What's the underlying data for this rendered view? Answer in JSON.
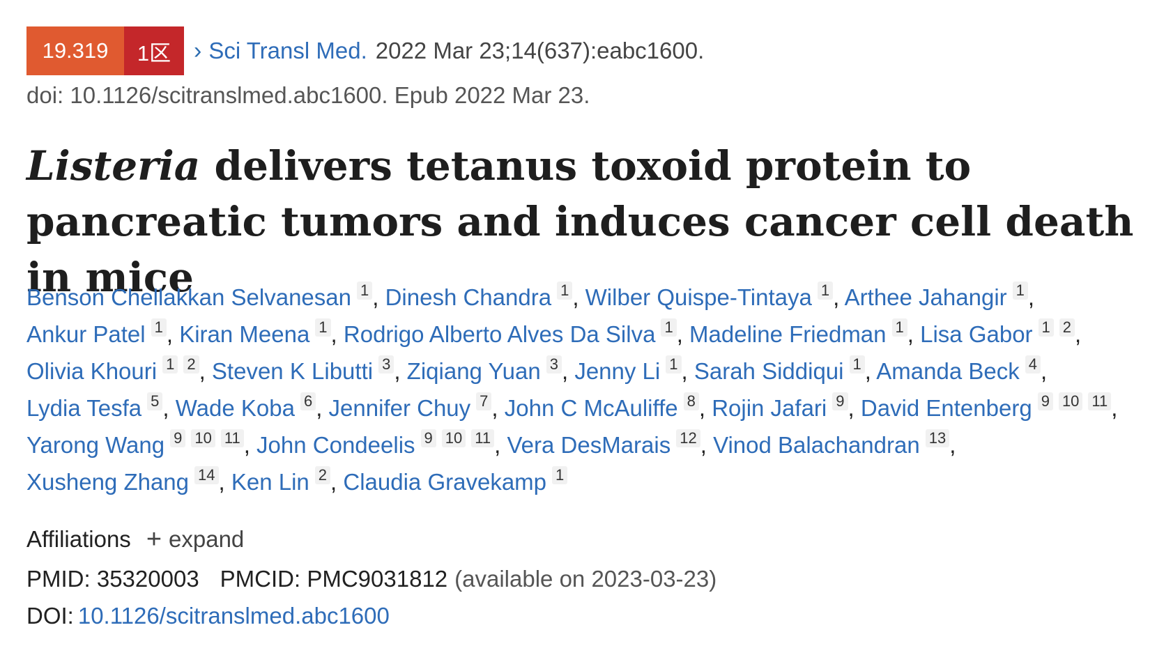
{
  "header": {
    "impact_factor": "19.319",
    "zone": "1区",
    "journal": "Sci Transl Med.",
    "citation": "2022 Mar 23;14(637):eabc1600.",
    "doi_epub": "doi: 10.1126/scitranslmed.abc1600. Epub 2022 Mar 23.",
    "colors": {
      "if_badge": "#e05a30",
      "zone_badge": "#c4272a",
      "link": "#2e6cb8"
    }
  },
  "title": {
    "italic": "Listeria",
    "rest": " delivers tetanus toxoid protein to pancreatic tumors and induces cancer cell death in mice"
  },
  "authors": [
    {
      "name": "Benson Chellakkan Selvanesan",
      "affs": [
        "1"
      ]
    },
    {
      "name": "Dinesh Chandra",
      "affs": [
        "1"
      ]
    },
    {
      "name": "Wilber Quispe-Tintaya",
      "affs": [
        "1"
      ]
    },
    {
      "name": "Arthee Jahangir",
      "affs": [
        "1"
      ]
    },
    {
      "name": "Ankur Patel",
      "affs": [
        "1"
      ]
    },
    {
      "name": "Kiran Meena",
      "affs": [
        "1"
      ]
    },
    {
      "name": "Rodrigo Alberto Alves Da Silva",
      "affs": [
        "1"
      ]
    },
    {
      "name": "Madeline Friedman",
      "affs": [
        "1"
      ]
    },
    {
      "name": "Lisa Gabor",
      "affs": [
        "1",
        "2"
      ]
    },
    {
      "name": "Olivia Khouri",
      "affs": [
        "1",
        "2"
      ]
    },
    {
      "name": "Steven K Libutti",
      "affs": [
        "3"
      ]
    },
    {
      "name": "Ziqiang Yuan",
      "affs": [
        "3"
      ]
    },
    {
      "name": "Jenny Li",
      "affs": [
        "1"
      ]
    },
    {
      "name": "Sarah Siddiqui",
      "affs": [
        "1"
      ]
    },
    {
      "name": "Amanda Beck",
      "affs": [
        "4"
      ]
    },
    {
      "name": "Lydia Tesfa",
      "affs": [
        "5"
      ]
    },
    {
      "name": "Wade Koba",
      "affs": [
        "6"
      ]
    },
    {
      "name": "Jennifer Chuy",
      "affs": [
        "7"
      ]
    },
    {
      "name": "John C McAuliffe",
      "affs": [
        "8"
      ]
    },
    {
      "name": "Rojin Jafari",
      "affs": [
        "9"
      ]
    },
    {
      "name": "David Entenberg",
      "affs": [
        "9",
        "10",
        "11"
      ]
    },
    {
      "name": "Yarong Wang",
      "affs": [
        "9",
        "10",
        "11"
      ]
    },
    {
      "name": "John Condeelis",
      "affs": [
        "9",
        "10",
        "11"
      ]
    },
    {
      "name": "Vera DesMarais",
      "affs": [
        "12"
      ]
    },
    {
      "name": "Vinod Balachandran",
      "affs": [
        "13"
      ]
    },
    {
      "name": "Xusheng Zhang",
      "affs": [
        "14"
      ]
    },
    {
      "name": "Ken Lin",
      "affs": [
        "2"
      ]
    },
    {
      "name": "Claudia Gravekamp",
      "affs": [
        "1"
      ]
    }
  ],
  "affiliations": {
    "label": "Affiliations",
    "expand_label": "expand",
    "icon": "plus-icon"
  },
  "ids": {
    "pmid_label": "PMID:",
    "pmid": "35320003",
    "pmcid_label": "PMCID:",
    "pmcid": "PMC9031812",
    "pmcid_note": "(available on 2023-03-23)",
    "doi_label": "DOI:",
    "doi": "10.1126/scitranslmed.abc1600"
  }
}
